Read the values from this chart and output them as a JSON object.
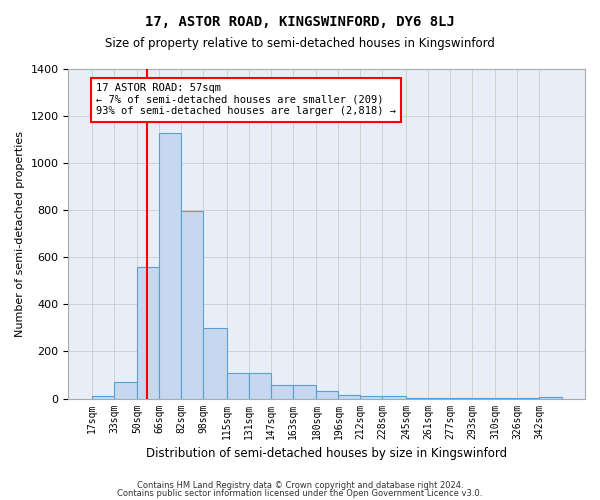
{
  "title": "17, ASTOR ROAD, KINGSWINFORD, DY6 8LJ",
  "subtitle": "Size of property relative to semi-detached houses in Kingswinford",
  "xlabel": "Distribution of semi-detached houses by size in Kingswinford",
  "ylabel": "Number of semi-detached properties",
  "bar_color": "#c5d8ef",
  "bar_edge_color": "#5a9fd4",
  "categories": [
    "17sqm",
    "33sqm",
    "50sqm",
    "66sqm",
    "82sqm",
    "98sqm",
    "115sqm",
    "131sqm",
    "147sqm",
    "163sqm",
    "180sqm",
    "196sqm",
    "212sqm",
    "228sqm",
    "245sqm",
    "261sqm",
    "277sqm",
    "293sqm",
    "310sqm",
    "326sqm",
    "342sqm"
  ],
  "values": [
    10,
    70,
    560,
    1130,
    795,
    300,
    110,
    110,
    58,
    58,
    30,
    15,
    10,
    10,
    4,
    4,
    2,
    2,
    1,
    1,
    5
  ],
  "annotation_text": "17 ASTOR ROAD: 57sqm\n← 7% of semi-detached houses are smaller (209)\n93% of semi-detached houses are larger (2,818) →",
  "annotation_box_color": "white",
  "annotation_box_edge_color": "red",
  "vline_color": "red",
  "vline_pos": 2,
  "ylim": [
    0,
    1400
  ],
  "yticks": [
    0,
    200,
    400,
    600,
    800,
    1000,
    1200,
    1400
  ],
  "grid_color": "#cccccc",
  "background_color": "#e8eef8",
  "footer1": "Contains HM Land Registry data © Crown copyright and database right 2024.",
  "footer2": "Contains public sector information licensed under the Open Government Licence v3.0.",
  "bin_edges": [
    17,
    33,
    50,
    66,
    82,
    98,
    115,
    131,
    147,
    163,
    180,
    196,
    212,
    228,
    245,
    261,
    277,
    293,
    310,
    326,
    342,
    358
  ]
}
